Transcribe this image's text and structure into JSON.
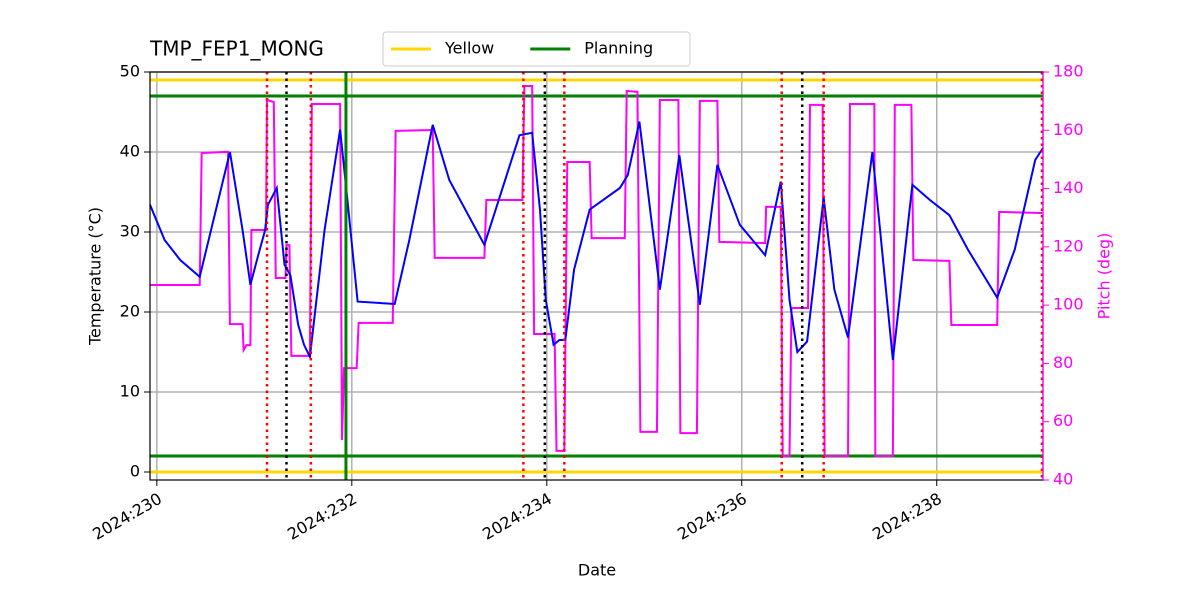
{
  "chart_data": {
    "type": "line",
    "title": "TMP_FEP1_MONG",
    "xlabel": "Date",
    "ylabel": "Temperature (°C)",
    "y2label": "Pitch (deg)",
    "xlim": [
      229.93,
      239.09
    ],
    "xticks": [
      {
        "value": 230,
        "label": "2024:230"
      },
      {
        "value": 232,
        "label": "2024:232"
      },
      {
        "value": 234,
        "label": "2024:234"
      },
      {
        "value": 236,
        "label": "2024:236"
      },
      {
        "value": 238,
        "label": "2024:238"
      }
    ],
    "ylim": [
      -1,
      50
    ],
    "yticks": [
      0,
      10,
      20,
      30,
      40,
      50
    ],
    "y2lim": [
      40,
      180
    ],
    "y2ticks": [
      40,
      60,
      80,
      100,
      120,
      140,
      160,
      180
    ],
    "y2color": "#ff00ff",
    "grid": true,
    "legend": "top",
    "series": [
      {
        "name": "Yellow",
        "color": "#ffd700",
        "hlines": [
          0,
          49
        ]
      },
      {
        "name": "Planning",
        "color": "#008000",
        "hlines": [
          2,
          47
        ]
      }
    ],
    "vlines": [
      {
        "color": "#008000",
        "style": "solid",
        "x": [
          231.94
        ]
      },
      {
        "color": "#ff0000",
        "style": "dotted",
        "x": [
          231.13,
          231.58,
          233.76,
          234.18,
          236.41,
          236.84,
          239.08
        ]
      },
      {
        "color": "#000000",
        "style": "dotted",
        "x": [
          231.33,
          233.98,
          236.62
        ]
      }
    ],
    "temperature": {
      "color": "#0000ff",
      "x": [
        229.93,
        230.08,
        230.24,
        230.44,
        230.75,
        230.88,
        230.96,
        231.04,
        231.11,
        231.14,
        231.23,
        231.31,
        231.37,
        231.45,
        231.51,
        231.57,
        231.72,
        231.88,
        231.95,
        232.06,
        232.44,
        232.59,
        232.83,
        233.0,
        233.36,
        233.72,
        233.85,
        233.93,
        233.99,
        234.07,
        234.13,
        234.19,
        234.28,
        234.44,
        234.75,
        234.83,
        234.95,
        235.16,
        235.36,
        235.57,
        235.75,
        235.98,
        236.24,
        236.4,
        236.49,
        236.57,
        236.67,
        236.84,
        236.95,
        237.09,
        237.34,
        237.55,
        237.75,
        237.93,
        238.13,
        238.32,
        238.62,
        238.8,
        239.01,
        239.09
      ],
      "values": [
        33.4,
        29,
        26.5,
        24.4,
        40,
        30.2,
        23.4,
        27.1,
        30.2,
        33.4,
        35.5,
        25.9,
        24.6,
        18.4,
        15.9,
        14.4,
        30.2,
        42.8,
        34.6,
        21.3,
        21,
        29,
        43.4,
        36.5,
        28.4,
        42.1,
        42.4,
        32.8,
        21.5,
        15.9,
        16.5,
        16.5,
        25.3,
        32.8,
        35.5,
        37.1,
        43.8,
        22.8,
        39.6,
        20.9,
        38.4,
        30.9,
        27.1,
        36.3,
        21.5,
        15,
        16.3,
        34.3,
        22.8,
        16.8,
        40,
        14,
        35.9,
        34,
        32.1,
        27.8,
        21.8,
        27.8,
        39,
        40.5
      ]
    },
    "pitch": {
      "color": "#ff00ff",
      "axis": "y2",
      "x": [
        229.93,
        230.44,
        230.46,
        230.73,
        230.75,
        230.88,
        230.89,
        230.92,
        230.96,
        230.97,
        231.12,
        231.13,
        231.2,
        231.22,
        231.32,
        231.33,
        231.36,
        231.38,
        231.57,
        231.59,
        231.88,
        231.9,
        231.92,
        232.05,
        232.07,
        232.42,
        232.45,
        232.83,
        232.85,
        233.36,
        233.38,
        233.75,
        233.77,
        233.85,
        233.87,
        234.08,
        234.1,
        234.18,
        234.21,
        234.44,
        234.46,
        234.8,
        234.82,
        234.93,
        234.96,
        235.13,
        235.16,
        235.35,
        235.37,
        235.54,
        235.57,
        235.75,
        235.77,
        236.24,
        236.25,
        236.4,
        236.42,
        236.49,
        236.51,
        236.68,
        236.7,
        236.83,
        236.85,
        237.09,
        237.11,
        237.36,
        237.37,
        237.55,
        237.57,
        237.74,
        237.76,
        238.13,
        238.15,
        238.62,
        238.64,
        239.08
      ],
      "values": [
        106.9,
        106.9,
        152.2,
        152.6,
        93.5,
        93.5,
        84.6,
        86.3,
        86.3,
        125.8,
        125.8,
        170.4,
        169.7,
        109.3,
        109.3,
        120.6,
        120.6,
        82.6,
        82.6,
        169.0,
        169.0,
        53.7,
        78.4,
        78.4,
        93.9,
        93.9,
        159.8,
        160.1,
        116.2,
        116.2,
        136.1,
        136.1,
        175.2,
        175.2,
        90.1,
        90.1,
        50,
        50,
        149.1,
        149.1,
        123,
        123,
        173.5,
        173.2,
        56.5,
        56.5,
        170.4,
        170.4,
        56.1,
        56.1,
        170.1,
        170.1,
        121.7,
        121.3,
        133.7,
        133.7,
        48.2,
        48.2,
        99,
        99,
        168.7,
        168.7,
        48.2,
        48.2,
        169,
        169,
        48.2,
        48.2,
        168.7,
        168.7,
        115.5,
        115.2,
        93.2,
        93.2,
        132,
        131.6
      ]
    }
  }
}
